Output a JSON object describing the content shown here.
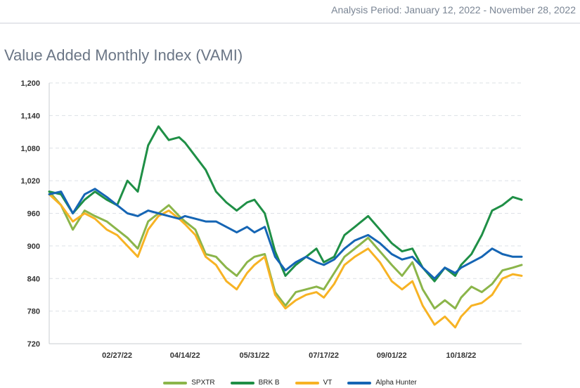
{
  "header": {
    "period": "Analysis Period: January 12, 2022 - November 28, 2022"
  },
  "title": "Value Added Monthly Index (VAMI)",
  "chart_data": {
    "type": "line",
    "ylim": [
      720,
      1200
    ],
    "yticks": [
      "1,200",
      "1,140",
      "1,080",
      "1,020",
      "960",
      "900",
      "840",
      "780",
      "720"
    ],
    "ytick_values": [
      1200,
      1140,
      1080,
      1020,
      960,
      900,
      840,
      780,
      720
    ],
    "xlim": [
      "2022-01-12",
      "2022-11-28"
    ],
    "xticks": [
      "02/27/22",
      "04/14/22",
      "05/31/22",
      "07/17/22",
      "09/01/22",
      "10/18/22"
    ],
    "xtick_dates": [
      "2022-02-27",
      "2022-04-14",
      "2022-05-31",
      "2022-07-17",
      "2022-09-01",
      "2022-10-18"
    ],
    "grid": true,
    "legend": "bottom",
    "series": [
      {
        "name": "SPXTR",
        "color": "#8bb54a",
        "points": [
          [
            "2022-01-12",
            1000
          ],
          [
            "2022-01-20",
            975
          ],
          [
            "2022-01-28",
            930
          ],
          [
            "2022-02-05",
            965
          ],
          [
            "2022-02-12",
            955
          ],
          [
            "2022-02-20",
            945
          ],
          [
            "2022-02-27",
            930
          ],
          [
            "2022-03-06",
            915
          ],
          [
            "2022-03-13",
            895
          ],
          [
            "2022-03-20",
            945
          ],
          [
            "2022-03-27",
            960
          ],
          [
            "2022-04-03",
            975
          ],
          [
            "2022-04-10",
            955
          ],
          [
            "2022-04-14",
            945
          ],
          [
            "2022-04-21",
            930
          ],
          [
            "2022-04-28",
            885
          ],
          [
            "2022-05-05",
            880
          ],
          [
            "2022-05-12",
            860
          ],
          [
            "2022-05-19",
            845
          ],
          [
            "2022-05-26",
            870
          ],
          [
            "2022-05-31",
            880
          ],
          [
            "2022-06-07",
            885
          ],
          [
            "2022-06-14",
            815
          ],
          [
            "2022-06-21",
            790
          ],
          [
            "2022-06-28",
            815
          ],
          [
            "2022-07-05",
            820
          ],
          [
            "2022-07-12",
            825
          ],
          [
            "2022-07-17",
            820
          ],
          [
            "2022-07-24",
            850
          ],
          [
            "2022-07-31",
            880
          ],
          [
            "2022-08-07",
            895
          ],
          [
            "2022-08-16",
            915
          ],
          [
            "2022-08-24",
            890
          ],
          [
            "2022-09-01",
            865
          ],
          [
            "2022-09-08",
            845
          ],
          [
            "2022-09-15",
            870
          ],
          [
            "2022-09-22",
            820
          ],
          [
            "2022-09-30",
            785
          ],
          [
            "2022-10-07",
            800
          ],
          [
            "2022-10-14",
            785
          ],
          [
            "2022-10-18",
            805
          ],
          [
            "2022-10-25",
            825
          ],
          [
            "2022-11-01",
            815
          ],
          [
            "2022-11-08",
            830
          ],
          [
            "2022-11-15",
            855
          ],
          [
            "2022-11-22",
            860
          ],
          [
            "2022-11-28",
            865
          ]
        ]
      },
      {
        "name": "BRK B",
        "color": "#1f8f46",
        "points": [
          [
            "2022-01-12",
            1000
          ],
          [
            "2022-01-20",
            995
          ],
          [
            "2022-01-28",
            960
          ],
          [
            "2022-02-05",
            985
          ],
          [
            "2022-02-12",
            1000
          ],
          [
            "2022-02-20",
            985
          ],
          [
            "2022-02-27",
            975
          ],
          [
            "2022-03-06",
            1020
          ],
          [
            "2022-03-13",
            1000
          ],
          [
            "2022-03-20",
            1085
          ],
          [
            "2022-03-27",
            1120
          ],
          [
            "2022-04-03",
            1095
          ],
          [
            "2022-04-10",
            1100
          ],
          [
            "2022-04-14",
            1090
          ],
          [
            "2022-04-21",
            1065
          ],
          [
            "2022-04-28",
            1040
          ],
          [
            "2022-05-05",
            1000
          ],
          [
            "2022-05-12",
            980
          ],
          [
            "2022-05-19",
            965
          ],
          [
            "2022-05-26",
            980
          ],
          [
            "2022-05-31",
            985
          ],
          [
            "2022-06-07",
            960
          ],
          [
            "2022-06-14",
            890
          ],
          [
            "2022-06-21",
            845
          ],
          [
            "2022-06-28",
            865
          ],
          [
            "2022-07-05",
            880
          ],
          [
            "2022-07-12",
            895
          ],
          [
            "2022-07-17",
            870
          ],
          [
            "2022-07-24",
            880
          ],
          [
            "2022-07-31",
            920
          ],
          [
            "2022-08-07",
            935
          ],
          [
            "2022-08-16",
            955
          ],
          [
            "2022-08-24",
            930
          ],
          [
            "2022-09-01",
            905
          ],
          [
            "2022-09-08",
            890
          ],
          [
            "2022-09-15",
            895
          ],
          [
            "2022-09-22",
            860
          ],
          [
            "2022-09-30",
            835
          ],
          [
            "2022-10-07",
            860
          ],
          [
            "2022-10-14",
            845
          ],
          [
            "2022-10-18",
            865
          ],
          [
            "2022-10-25",
            885
          ],
          [
            "2022-11-01",
            920
          ],
          [
            "2022-11-08",
            965
          ],
          [
            "2022-11-15",
            975
          ],
          [
            "2022-11-22",
            990
          ],
          [
            "2022-11-28",
            985
          ]
        ]
      },
      {
        "name": "VT",
        "color": "#f7b324",
        "points": [
          [
            "2022-01-12",
            995
          ],
          [
            "2022-01-20",
            975
          ],
          [
            "2022-01-28",
            945
          ],
          [
            "2022-02-05",
            960
          ],
          [
            "2022-02-12",
            950
          ],
          [
            "2022-02-20",
            930
          ],
          [
            "2022-02-27",
            920
          ],
          [
            "2022-03-06",
            900
          ],
          [
            "2022-03-13",
            880
          ],
          [
            "2022-03-20",
            930
          ],
          [
            "2022-03-27",
            955
          ],
          [
            "2022-04-03",
            965
          ],
          [
            "2022-04-10",
            950
          ],
          [
            "2022-04-14",
            940
          ],
          [
            "2022-04-21",
            920
          ],
          [
            "2022-04-28",
            880
          ],
          [
            "2022-05-05",
            865
          ],
          [
            "2022-05-12",
            835
          ],
          [
            "2022-05-19",
            820
          ],
          [
            "2022-05-26",
            850
          ],
          [
            "2022-05-31",
            865
          ],
          [
            "2022-06-07",
            880
          ],
          [
            "2022-06-14",
            810
          ],
          [
            "2022-06-21",
            785
          ],
          [
            "2022-06-28",
            800
          ],
          [
            "2022-07-05",
            810
          ],
          [
            "2022-07-12",
            815
          ],
          [
            "2022-07-17",
            805
          ],
          [
            "2022-07-24",
            830
          ],
          [
            "2022-07-31",
            865
          ],
          [
            "2022-08-07",
            880
          ],
          [
            "2022-08-16",
            895
          ],
          [
            "2022-08-24",
            870
          ],
          [
            "2022-09-01",
            835
          ],
          [
            "2022-09-08",
            820
          ],
          [
            "2022-09-15",
            835
          ],
          [
            "2022-09-22",
            790
          ],
          [
            "2022-09-30",
            755
          ],
          [
            "2022-10-07",
            770
          ],
          [
            "2022-10-14",
            750
          ],
          [
            "2022-10-18",
            770
          ],
          [
            "2022-10-25",
            790
          ],
          [
            "2022-11-01",
            795
          ],
          [
            "2022-11-08",
            810
          ],
          [
            "2022-11-15",
            840
          ],
          [
            "2022-11-22",
            848
          ],
          [
            "2022-11-28",
            845
          ]
        ]
      },
      {
        "name": "Alpha Hunter",
        "color": "#1565b4",
        "points": [
          [
            "2022-01-12",
            995
          ],
          [
            "2022-01-20",
            1000
          ],
          [
            "2022-01-28",
            960
          ],
          [
            "2022-02-05",
            995
          ],
          [
            "2022-02-12",
            1005
          ],
          [
            "2022-02-20",
            990
          ],
          [
            "2022-02-27",
            975
          ],
          [
            "2022-03-06",
            960
          ],
          [
            "2022-03-13",
            955
          ],
          [
            "2022-03-20",
            965
          ],
          [
            "2022-03-27",
            960
          ],
          [
            "2022-04-03",
            955
          ],
          [
            "2022-04-10",
            950
          ],
          [
            "2022-04-14",
            955
          ],
          [
            "2022-04-21",
            950
          ],
          [
            "2022-04-28",
            945
          ],
          [
            "2022-05-05",
            945
          ],
          [
            "2022-05-12",
            935
          ],
          [
            "2022-05-19",
            925
          ],
          [
            "2022-05-26",
            935
          ],
          [
            "2022-05-31",
            925
          ],
          [
            "2022-06-07",
            935
          ],
          [
            "2022-06-14",
            880
          ],
          [
            "2022-06-21",
            855
          ],
          [
            "2022-06-28",
            870
          ],
          [
            "2022-07-05",
            880
          ],
          [
            "2022-07-12",
            870
          ],
          [
            "2022-07-17",
            865
          ],
          [
            "2022-07-24",
            875
          ],
          [
            "2022-07-31",
            895
          ],
          [
            "2022-08-07",
            910
          ],
          [
            "2022-08-16",
            920
          ],
          [
            "2022-08-24",
            905
          ],
          [
            "2022-09-01",
            885
          ],
          [
            "2022-09-08",
            875
          ],
          [
            "2022-09-15",
            880
          ],
          [
            "2022-09-22",
            860
          ],
          [
            "2022-09-30",
            840
          ],
          [
            "2022-10-07",
            860
          ],
          [
            "2022-10-14",
            850
          ],
          [
            "2022-10-18",
            860
          ],
          [
            "2022-10-25",
            870
          ],
          [
            "2022-11-01",
            880
          ],
          [
            "2022-11-08",
            895
          ],
          [
            "2022-11-15",
            885
          ],
          [
            "2022-11-22",
            880
          ],
          [
            "2022-11-28",
            880
          ]
        ]
      }
    ]
  }
}
